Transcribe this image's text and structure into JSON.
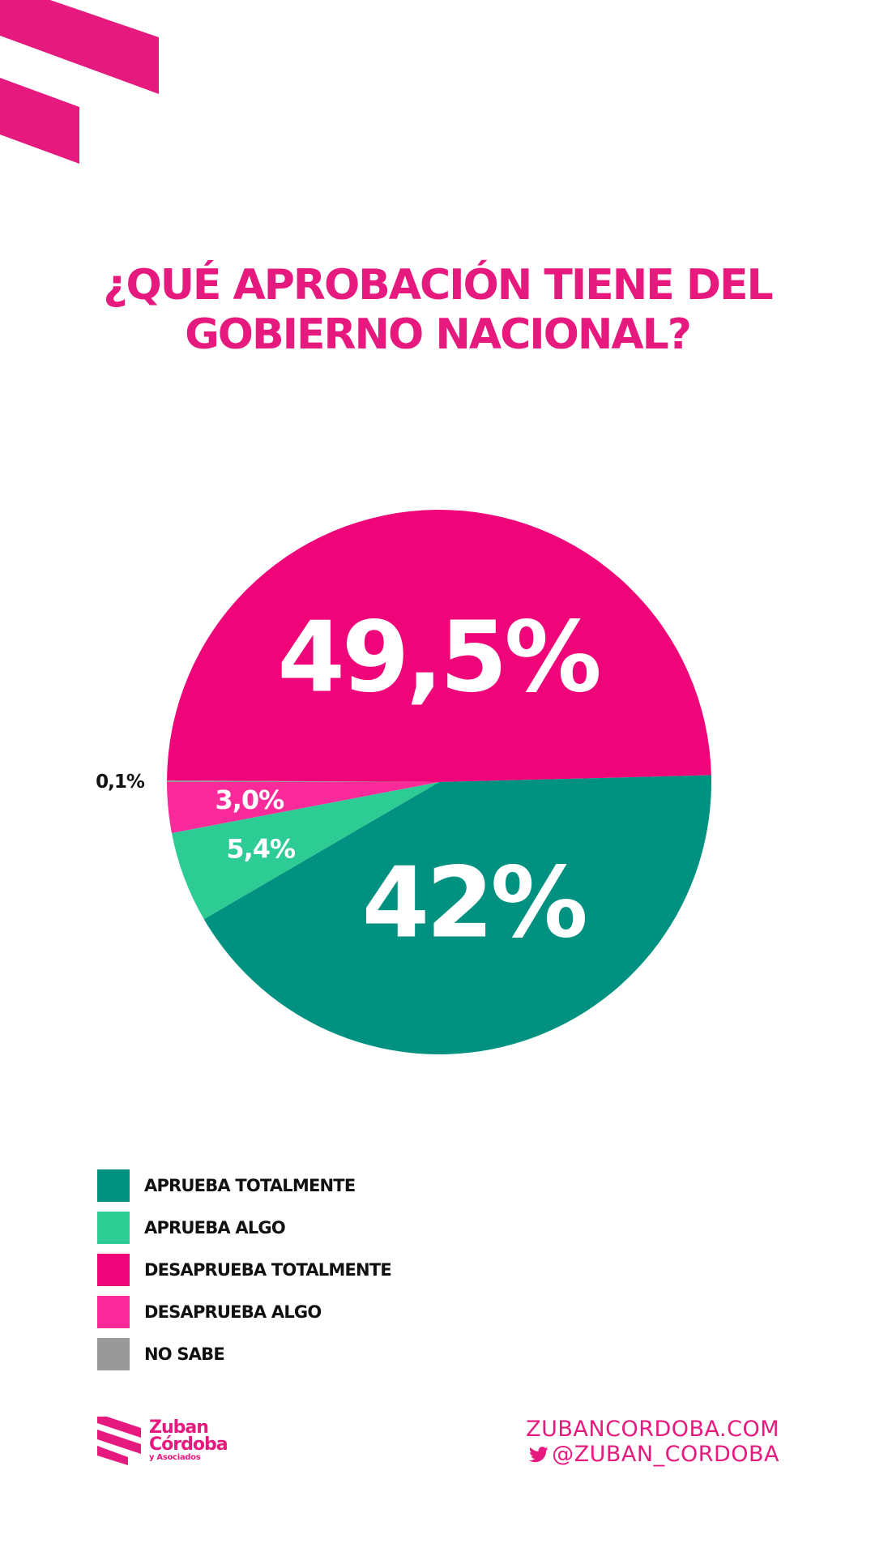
{
  "colors": {
    "brand": "#e6197e",
    "aprueba_totalmente": "#009180",
    "aprueba_algo": "#2ecc95",
    "desaprueba_totalmente": "#f0047a",
    "desaprueba_algo": "#fb2a9a",
    "no_sabe": "#999999"
  },
  "header": {
    "title_line1": "¿QUÉ APROBACIÓN TIENE DEL",
    "title_line2": "GOBIERNO NACIONAL?"
  },
  "chart_data": {
    "type": "pie",
    "title": "¿QUÉ APROBACIÓN TIENE DEL GOBIERNO NACIONAL?",
    "start_angle_deg": 180,
    "direction": "clockwise",
    "legend_position": "bottom-left",
    "slices": [
      {
        "name": "NO SABE",
        "value": 0.1,
        "label": "0,1%",
        "color": "#999999",
        "label_style": "outside"
      },
      {
        "name": "DESAPRUEBA TOTALMENTE",
        "value": 49.5,
        "label": "49,5%",
        "color": "#f0047a",
        "label_style": "large"
      },
      {
        "name": "APRUEBA TOTALMENTE",
        "value": 42,
        "label": "42%",
        "color": "#009180",
        "label_style": "large"
      },
      {
        "name": "APRUEBA ALGO",
        "value": 5.4,
        "label": "5,4%",
        "color": "#2ecc95",
        "label_style": "small"
      },
      {
        "name": "DESAPRUEBA ALGO",
        "value": 3.0,
        "label": "3,0%",
        "color": "#fb2a9a",
        "label_style": "small"
      }
    ]
  },
  "legend": {
    "items": [
      {
        "label": "APRUEBA TOTALMENTE",
        "color": "#009180"
      },
      {
        "label": "APRUEBA ALGO",
        "color": "#2ecc95"
      },
      {
        "label": "DESAPRUEBA TOTALMENTE",
        "color": "#f0047a"
      },
      {
        "label": "DESAPRUEBA ALGO",
        "color": "#fb2a9a"
      },
      {
        "label": "NO SABE",
        "color": "#999999"
      }
    ]
  },
  "footer": {
    "logo_line1": "Zuban",
    "logo_line2": "Córdoba",
    "logo_line3": "y Asociados",
    "website": "ZUBANCORDOBA.COM",
    "twitter": "@ZUBAN_CORDOBA"
  }
}
